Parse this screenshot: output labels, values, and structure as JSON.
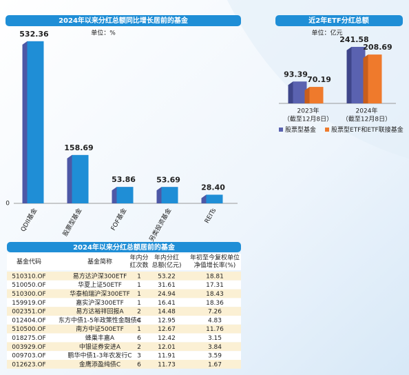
{
  "chart_data": [
    {
      "type": "bar3d",
      "title": "2024年以来分红总额同比增长居前的基金",
      "unit": "单位：%",
      "categories": [
        "QDII基金",
        "股票型基金",
        "FOF基金",
        "另类投资基金",
        "REITs"
      ],
      "values": [
        532.36,
        158.69,
        53.86,
        53.69,
        28.4
      ],
      "value_labels": [
        "532.36",
        "158.69",
        "53.86",
        "53.69",
        "28.40"
      ],
      "color": "#1f8ed6",
      "ylim": [
        0,
        600
      ],
      "yticks": [
        0
      ]
    },
    {
      "type": "grouped_bar3d",
      "title": "近2年ETF分红总额",
      "unit": "单位：亿元",
      "categories": [
        "2023年",
        "2024年"
      ],
      "category_notes": [
        "（截至12月8日）",
        "（截至12月8日）"
      ],
      "series": [
        {
          "name": "股票型基金",
          "color": "#5a62b0",
          "values": [
            93.39,
            241.58
          ]
        },
        {
          "name": "股票型ETF和ETF联接基金",
          "color": "#ef7a2c",
          "values": [
            70.19,
            208.69
          ]
        }
      ],
      "ylim": [
        0,
        280
      ]
    }
  ],
  "table": {
    "title": "2024年以来分红总额居前的基金",
    "headers": [
      [
        "基金代码"
      ],
      [
        "基金简称"
      ],
      [
        "年内分",
        "红次数"
      ],
      [
        "年内分红",
        "总额(亿元)"
      ],
      [
        "年初至今复权单位",
        "净值增长率(%)"
      ]
    ],
    "rows": [
      [
        "510310.OF",
        "易方达沪深300ETF",
        "1",
        "53.22",
        "18.81"
      ],
      [
        "510050.OF",
        "华夏上证50ETF",
        "1",
        "31.61",
        "17.31"
      ],
      [
        "510300.OF",
        "华泰柏瑞沪深300ETF",
        "1",
        "24.94",
        "18.43"
      ],
      [
        "159919.OF",
        "嘉实沪深300ETF",
        "1",
        "16.41",
        "18.36"
      ],
      [
        "002351.OF",
        "易方达裕祥回报A",
        "2",
        "14.48",
        "7.26"
      ],
      [
        "012404.OF",
        "东方中债1-5年政策性金融债C",
        "4",
        "12.95",
        "4.83"
      ],
      [
        "510500.OF",
        "南方中证500ETF",
        "1",
        "12.67",
        "11.76"
      ],
      [
        "018275.OF",
        "蜂巢丰嘉A",
        "6",
        "12.42",
        "3.15"
      ],
      [
        "003929.OF",
        "中银证券安进A",
        "2",
        "12.01",
        "3.84"
      ],
      [
        "009703.OF",
        "鹏华中债1-3年农发行C",
        "3",
        "11.91",
        "3.59"
      ],
      [
        "012623.OF",
        "金鹰添盈纯债C",
        "6",
        "11.73",
        "1.67"
      ]
    ]
  }
}
